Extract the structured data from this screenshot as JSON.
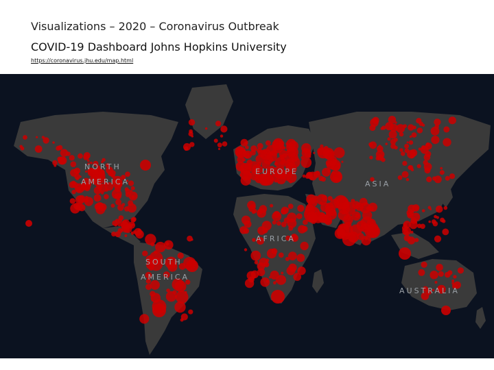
{
  "header": {
    "slide_title": "Visualizations – 2020 – Coronavirus Outbreak",
    "dashboard_title": "COVID-19 Dashboard Johns Hopkins University",
    "source_url": "https://coronavirus.jhu.edu/map.html"
  },
  "map": {
    "land_color": "#3a3a3a",
    "ocean_color": "#0b1220",
    "marker_color": "#cc0000",
    "labels": {
      "north": "NORTH",
      "america_n": "AMERICA",
      "europe": "EUROPE",
      "asia": "ASIA",
      "africa": "AFRICA",
      "south": "SOUTH",
      "america_s": "AMERICA",
      "australia": "AUSTRALIA"
    }
  }
}
